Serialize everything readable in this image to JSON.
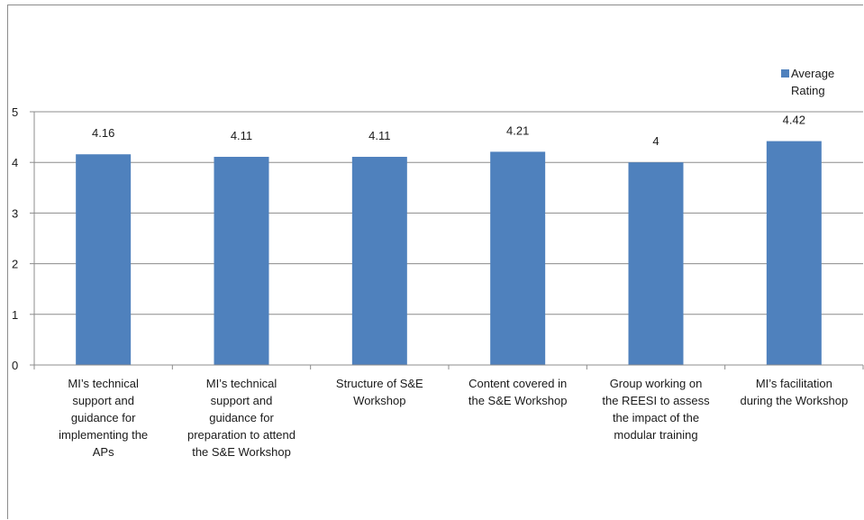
{
  "chart_data": {
    "type": "bar",
    "categories": [
      "MI’s technical support and guidance for implementing the APs",
      "MI’s technical support and guidance for preparation to attend the S&E Workshop",
      "Structure of S&E Workshop",
      "Content covered in the S&E Workshop",
      "Group working on the REESI to assess the impact of the modular training",
      "MI’s facilitation during the Workshop"
    ],
    "category_lines": [
      [
        "MI’s technical",
        "support and",
        "guidance for",
        "implementing the",
        "APs"
      ],
      [
        "MI’s technical",
        "support and",
        "guidance for",
        "preparation to attend",
        "the S&E Workshop"
      ],
      [
        "Structure of S&E",
        "Workshop"
      ],
      [
        "Content covered in",
        "the S&E Workshop"
      ],
      [
        "Group working on",
        "the REESI to assess",
        "the impact of the",
        "modular training"
      ],
      [
        "MI’s facilitation",
        "during the Workshop"
      ]
    ],
    "series": [
      {
        "name": "Average Rating",
        "values": [
          4.16,
          4.11,
          4.11,
          4.21,
          4,
          4.42
        ],
        "labels": [
          "4.16",
          "4.11",
          "4.11",
          "4.21",
          "4",
          "4.42"
        ]
      }
    ],
    "ylim": [
      0,
      5
    ],
    "yticks": [
      "0",
      "1",
      "2",
      "3",
      "4",
      "5"
    ],
    "grid": true,
    "legend_position": "top-right",
    "colors": {
      "bar": "#4f81bd",
      "grid": "#8c8c8c",
      "axis": "#8c8c8c"
    },
    "title": "",
    "xlabel": "",
    "ylabel": ""
  },
  "legend": {
    "label_line1": "Average",
    "label_line2": "Rating"
  }
}
